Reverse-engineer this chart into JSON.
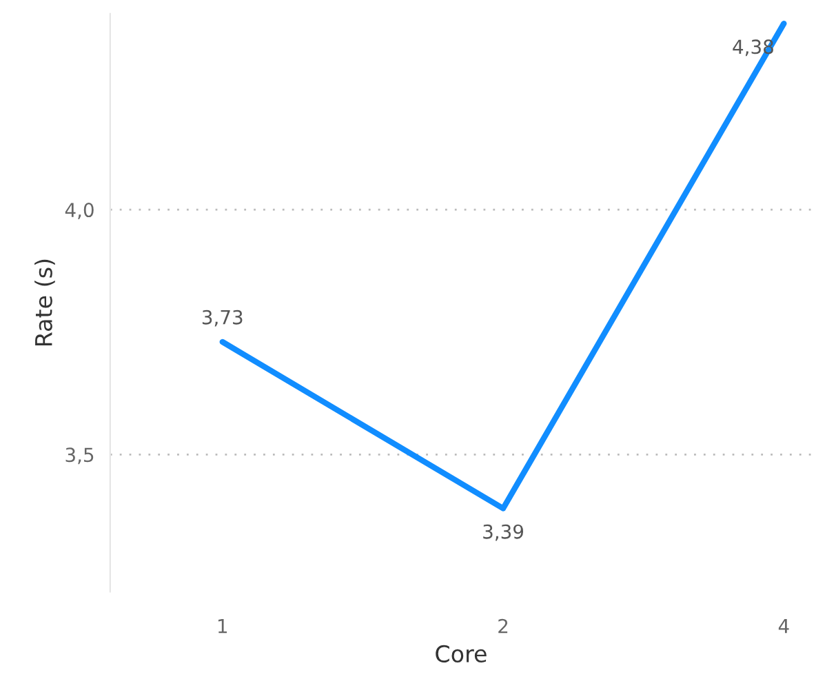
{
  "chart_data": {
    "type": "line",
    "xlabel": "Core",
    "ylabel": "Rate (s)",
    "categories": [
      "1",
      "2",
      "4"
    ],
    "series": [
      {
        "color": "#118dff",
        "values": [
          3.73,
          3.39,
          4.38
        ],
        "value_labels": [
          "3,73",
          "3,39",
          "4,38"
        ]
      }
    ],
    "ylim": [
      3.22,
      4.4
    ],
    "yticks": [
      {
        "value": 3.5,
        "label": "3,5"
      },
      {
        "value": 4.0,
        "label": "4,0"
      }
    ],
    "grid": "y",
    "marker": "none",
    "line_style": "solid",
    "legend": false
  }
}
